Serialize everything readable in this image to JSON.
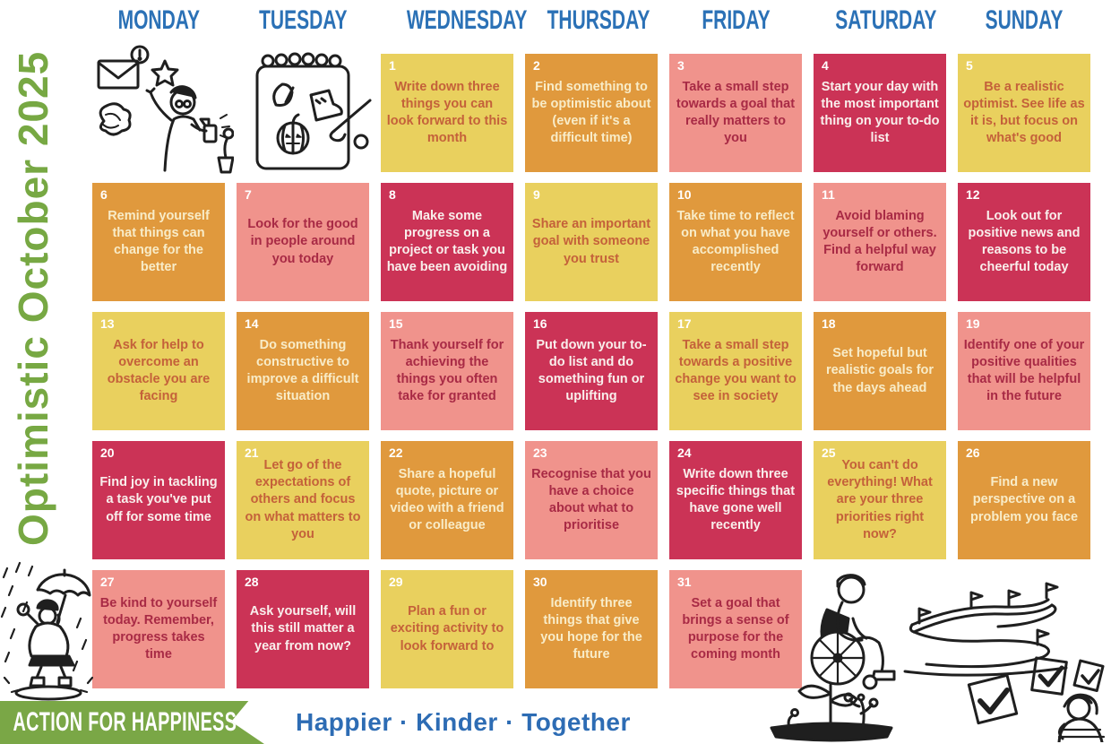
{
  "title": {
    "text": "Optimistic October 2025",
    "color": "#77a843"
  },
  "weekday_header": {
    "color": "#2b71b6",
    "labels": [
      "MONDAY",
      "TUESDAY",
      "WEDNESDAY",
      "THURSDAY",
      "FRIDAY",
      "SATURDAY",
      "SUNDAY"
    ]
  },
  "palettes": {
    "yellow": {
      "bg": "#e9d05e",
      "text": "#c4613a",
      "num": "#ffffff"
    },
    "orange": {
      "bg": "#e0993d",
      "text": "#f8ecc8",
      "num": "#ffffff"
    },
    "pink": {
      "bg": "#f0938c",
      "text": "#a82a45",
      "num": "#ffffff"
    },
    "crimson": {
      "bg": "#cb3356",
      "text": "#f9efec",
      "num": "#ffffff"
    }
  },
  "days": [
    {
      "num": "1",
      "weekday": "Wednesday",
      "col": 3,
      "row": 1,
      "palette": "yellow",
      "text": "Write down three things you can look forward to this month"
    },
    {
      "num": "2",
      "weekday": "Thursday",
      "col": 4,
      "row": 1,
      "palette": "orange",
      "text": "Find something to be optimistic about (even if it's a difficult time)"
    },
    {
      "num": "3",
      "weekday": "Friday",
      "col": 5,
      "row": 1,
      "palette": "pink",
      "text": "Take a small step towards a goal that really matters to you"
    },
    {
      "num": "4",
      "weekday": "Saturday",
      "col": 6,
      "row": 1,
      "palette": "crimson",
      "text": "Start your day with the most important thing on your to-do list"
    },
    {
      "num": "5",
      "weekday": "Sunday",
      "col": 7,
      "row": 1,
      "palette": "yellow",
      "text": "Be a realistic optimist. See life as it is, but focus on what's good"
    },
    {
      "num": "6",
      "weekday": "Monday",
      "col": 1,
      "row": 2,
      "palette": "orange",
      "text": "Remind yourself that things can change for the better"
    },
    {
      "num": "7",
      "weekday": "Tuesday",
      "col": 2,
      "row": 2,
      "palette": "pink",
      "text": "Look for the good in people around you today"
    },
    {
      "num": "8",
      "weekday": "Wednesday",
      "col": 3,
      "row": 2,
      "palette": "crimson",
      "text": "Make some progress on a project or task you have been avoiding"
    },
    {
      "num": "9",
      "weekday": "Thursday",
      "col": 4,
      "row": 2,
      "palette": "yellow",
      "text": "Share an important goal with someone you trust"
    },
    {
      "num": "10",
      "weekday": "Friday",
      "col": 5,
      "row": 2,
      "palette": "orange",
      "text": "Take time to reflect on what you have accomplished recently"
    },
    {
      "num": "11",
      "weekday": "Saturday",
      "col": 6,
      "row": 2,
      "palette": "pink",
      "text": "Avoid blaming yourself or others. Find a helpful way forward"
    },
    {
      "num": "12",
      "weekday": "Sunday",
      "col": 7,
      "row": 2,
      "palette": "crimson",
      "text": "Look out for positive news and reasons to be cheerful today"
    },
    {
      "num": "13",
      "weekday": "Monday",
      "col": 1,
      "row": 3,
      "palette": "yellow",
      "text": "Ask for help to overcome an obstacle you are facing"
    },
    {
      "num": "14",
      "weekday": "Tuesday",
      "col": 2,
      "row": 3,
      "palette": "orange",
      "text": "Do something constructive to improve a difficult situation"
    },
    {
      "num": "15",
      "weekday": "Wednesday",
      "col": 3,
      "row": 3,
      "palette": "pink",
      "text": "Thank yourself for achieving the things you often take for granted"
    },
    {
      "num": "16",
      "weekday": "Thursday",
      "col": 4,
      "row": 3,
      "palette": "crimson",
      "text": "Put down your to-do list and do something fun or uplifting"
    },
    {
      "num": "17",
      "weekday": "Friday",
      "col": 5,
      "row": 3,
      "palette": "yellow",
      "text": "Take a small step towards a positive change you want to see in society"
    },
    {
      "num": "18",
      "weekday": "Saturday",
      "col": 6,
      "row": 3,
      "palette": "orange",
      "text": "Set hopeful but realistic goals for the days ahead"
    },
    {
      "num": "19",
      "weekday": "Sunday",
      "col": 7,
      "row": 3,
      "palette": "pink",
      "text": "Identify one of your positive qualities that will be helpful in the future"
    },
    {
      "num": "20",
      "weekday": "Monday",
      "col": 1,
      "row": 4,
      "palette": "crimson",
      "text": "Find joy in tackling a task you've put off for some time"
    },
    {
      "num": "21",
      "weekday": "Tuesday",
      "col": 2,
      "row": 4,
      "palette": "yellow",
      "text": "Let go of the expectations of others and focus on what matters to you"
    },
    {
      "num": "22",
      "weekday": "Wednesday",
      "col": 3,
      "row": 4,
      "palette": "orange",
      "text": "Share a hopeful quote, picture or video with a friend or colleague"
    },
    {
      "num": "23",
      "weekday": "Thursday",
      "col": 4,
      "row": 4,
      "palette": "pink",
      "text": "Recognise that you have a choice about what to prioritise"
    },
    {
      "num": "24",
      "weekday": "Friday",
      "col": 5,
      "row": 4,
      "palette": "crimson",
      "text": "Write down three specific things that have gone well recently"
    },
    {
      "num": "25",
      "weekday": "Saturday",
      "col": 6,
      "row": 4,
      "palette": "yellow",
      "text": "You can't do everything! What are your three priorities right now?"
    },
    {
      "num": "26",
      "weekday": "Sunday",
      "col": 7,
      "row": 4,
      "palette": "orange",
      "text": "Find a new perspective on a problem you face"
    },
    {
      "num": "27",
      "weekday": "Monday",
      "col": 1,
      "row": 5,
      "palette": "pink",
      "text": "Be kind to yourself today. Remember, progress takes time"
    },
    {
      "num": "28",
      "weekday": "Tuesday",
      "col": 2,
      "row": 5,
      "palette": "crimson",
      "text": "Ask yourself, will this still matter a year from now?"
    },
    {
      "num": "29",
      "weekday": "Wednesday",
      "col": 3,
      "row": 5,
      "palette": "yellow",
      "text": "Plan a fun or exciting activity to look forward to"
    },
    {
      "num": "30",
      "weekday": "Thursday",
      "col": 4,
      "row": 5,
      "palette": "orange",
      "text": "Identify three things that give you hope for the future"
    },
    {
      "num": "31",
      "weekday": "Friday",
      "col": 5,
      "row": 5,
      "palette": "pink",
      "text": "Set a goal that brings a sense of purpose for the coming month"
    }
  ],
  "footer": {
    "banner_text": "ACTION FOR HAPPINESS",
    "banner_color": "#7aa746",
    "tagline": "Happier · Kinder · Together",
    "tagline_color": "#2d6cb4"
  },
  "illustrations": [
    "spray-plant-doodle",
    "autumn-notebook-doodle",
    "rain-umbrella-doodle",
    "wheelchair-person-doodle",
    "winding-path-flags-doodle",
    "sprouting-plants-doodle",
    "checkboxes-person-doodle"
  ]
}
